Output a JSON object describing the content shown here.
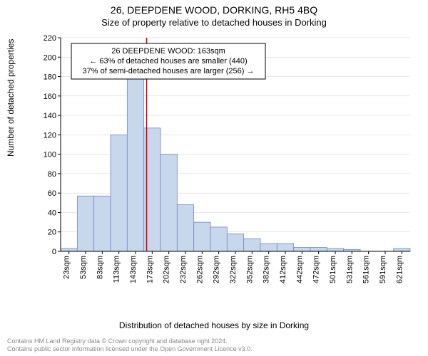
{
  "header": {
    "title_main": "26, DEEPDENE WOOD, DORKING, RH5 4BQ",
    "title_sub": "Size of property relative to detached houses in Dorking"
  },
  "chart": {
    "type": "histogram",
    "ylabel": "Number of detached properties",
    "xlabel": "Distribution of detached houses by size in Dorking",
    "ylim": [
      0,
      220
    ],
    "ytick_step": 20,
    "bar_fill": "#c9d7ed",
    "bar_stroke": "#6a8bc0",
    "background_color": "#ffffff",
    "grid_color": "#d0d0d0",
    "axis_color": "#000000",
    "reference_line_color": "#cc0000",
    "reference_line_x": 163,
    "categories": [
      "23sqm",
      "53sqm",
      "83sqm",
      "113sqm",
      "143sqm",
      "173sqm",
      "202sqm",
      "232sqm",
      "262sqm",
      "292sqm",
      "322sqm",
      "352sqm",
      "382sqm",
      "412sqm",
      "442sqm",
      "472sqm",
      "501sqm",
      "531sqm",
      "561sqm",
      "591sqm",
      "621sqm"
    ],
    "values": [
      3,
      57,
      57,
      120,
      179,
      127,
      100,
      48,
      30,
      25,
      18,
      13,
      8,
      8,
      4,
      4,
      3,
      2,
      0,
      0,
      3
    ],
    "bar_width_ratio": 1.0,
    "annotation": {
      "lines": [
        "26 DEEPDENE WOOD: 163sqm",
        "← 63% of detached houses are smaller (440)",
        "37% of semi-detached houses are larger (256) →"
      ],
      "border_color": "#000000",
      "bg_color": "#ffffff"
    }
  },
  "footer": {
    "line1": "Contains HM Land Registry data © Crown copyright and database right 2024.",
    "line2": "Contains public sector information licensed under the Open Government Licence v3.0."
  }
}
